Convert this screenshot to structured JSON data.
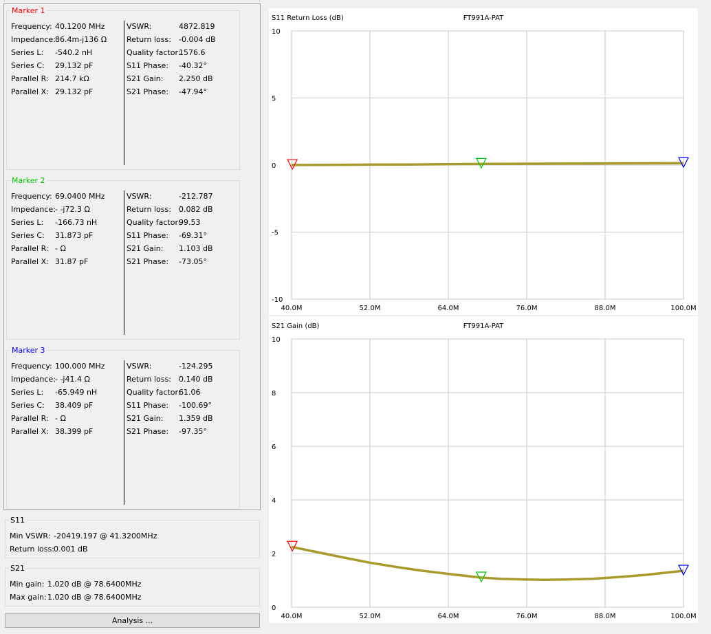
{
  "markers": [
    {
      "title": "Marker 1",
      "title_color": "#ff0000",
      "left_rows": [
        {
          "label": "Frequency:",
          "value": "40.1200 MHz"
        },
        {
          "label": "Impedance:",
          "value": "86.4m-j136 Ω"
        },
        {
          "label": "Series L:",
          "value": "-540.2 nH"
        },
        {
          "label": "Series C:",
          "value": "29.132 pF"
        },
        {
          "label": "Parallel R:",
          "value": "214.7 kΩ"
        },
        {
          "label": "Parallel X:",
          "value": "29.132 pF"
        }
      ],
      "right_rows": [
        {
          "label": "VSWR:",
          "value": "4872.819"
        },
        {
          "label": "Return loss:",
          "value": "-0.004 dB"
        },
        {
          "label": "Quality factor:",
          "value": "1576.6"
        },
        {
          "label": "S11 Phase:",
          "value": "-40.32°"
        },
        {
          "label": "S21 Gain:",
          "value": "2.250 dB"
        },
        {
          "label": "S21 Phase:",
          "value": "-47.94°"
        }
      ]
    },
    {
      "title": "Marker 2",
      "title_color": "#00c800",
      "left_rows": [
        {
          "label": "Frequency:",
          "value": "69.0400 MHz"
        },
        {
          "label": "Impedance:",
          "value": "- -j72.3 Ω"
        },
        {
          "label": "Series L:",
          "value": "-166.73 nH"
        },
        {
          "label": "Series C:",
          "value": "31.873 pF"
        },
        {
          "label": "Parallel R:",
          "value": "- Ω"
        },
        {
          "label": "Parallel X:",
          "value": "31.87 pF"
        }
      ],
      "right_rows": [
        {
          "label": "VSWR:",
          "value": "-212.787"
        },
        {
          "label": "Return loss:",
          "value": "0.082 dB"
        },
        {
          "label": "Quality factor:",
          "value": "99.53"
        },
        {
          "label": "S11 Phase:",
          "value": "-69.31°"
        },
        {
          "label": "S21 Gain:",
          "value": "1.103 dB"
        },
        {
          "label": "S21 Phase:",
          "value": "-73.05°"
        }
      ]
    },
    {
      "title": "Marker 3",
      "title_color": "#0000ff",
      "left_rows": [
        {
          "label": "Frequency:",
          "value": "100.000 MHz"
        },
        {
          "label": "Impedance:",
          "value": "- -j41.4 Ω"
        },
        {
          "label": "Series L:",
          "value": "-65.949 nH"
        },
        {
          "label": "Series C:",
          "value": "38.409 pF"
        },
        {
          "label": "Parallel R:",
          "value": "- Ω"
        },
        {
          "label": "Parallel X:",
          "value": "38.399 pF"
        }
      ],
      "right_rows": [
        {
          "label": "VSWR:",
          "value": "-124.295"
        },
        {
          "label": "Return loss:",
          "value": "0.140 dB"
        },
        {
          "label": "Quality factor:",
          "value": "61.06"
        },
        {
          "label": "S11 Phase:",
          "value": "-100.69°"
        },
        {
          "label": "S21 Gain:",
          "value": "1.359 dB"
        },
        {
          "label": "S21 Phase:",
          "value": "-97.35°"
        }
      ]
    }
  ],
  "s11_summary": {
    "title": "S11",
    "min_vswr_label": "Min VSWR:",
    "min_vswr_value": "-20419.197 @ 41.3200MHz",
    "return_loss_label": "Return loss:",
    "return_loss_value": "0.001 dB"
  },
  "s21_summary": {
    "title": "S21",
    "min_gain_label": "Min gain:",
    "min_gain_value": "1.020 dB @ 78.6400MHz",
    "max_gain_label": "Max gain:",
    "max_gain_value": "1.020 dB @ 78.6400MHz"
  },
  "analysis_button": "Analysis ...",
  "colors": {
    "trace": "#a89a2c",
    "grid": "#c8c8c8",
    "marker1": "#ff0000",
    "marker2": "#00c800",
    "marker3": "#0000ff"
  },
  "chart_data": [
    {
      "type": "line",
      "title": "FT991A-PAT",
      "ylabel": "S11 Return Loss (dB)",
      "xlim": [
        40,
        100
      ],
      "ylim": [
        -10,
        10
      ],
      "x_ticks": [
        40,
        52,
        64,
        76,
        88,
        100
      ],
      "x_tick_labels": [
        "40.0M",
        "52.0M",
        "64.0M",
        "76.0M",
        "88.0M",
        "100.0M"
      ],
      "y_ticks": [
        -10,
        -5,
        0,
        5,
        10
      ],
      "y_tick_labels": [
        "-10",
        "-5",
        "0",
        "5",
        "10"
      ],
      "grid": true,
      "series": [
        {
          "x": [
            40,
            46,
            52,
            58,
            64,
            69.04,
            76,
            82,
            88,
            94,
            100
          ],
          "y": [
            0.0,
            0.01,
            0.03,
            0.04,
            0.06,
            0.08,
            0.1,
            0.11,
            0.12,
            0.13,
            0.14
          ]
        }
      ],
      "markers": [
        {
          "x": 40.12,
          "y": -0.004,
          "color": "#ff0000"
        },
        {
          "x": 69.04,
          "y": 0.082,
          "color": "#00c800"
        },
        {
          "x": 100.0,
          "y": 0.14,
          "color": "#0000ff"
        }
      ]
    },
    {
      "type": "line",
      "title": "FT991A-PAT",
      "ylabel": "S21 Gain (dB)",
      "xlim": [
        40,
        100
      ],
      "ylim": [
        0,
        10
      ],
      "x_ticks": [
        40,
        52,
        64,
        76,
        88,
        100
      ],
      "x_tick_labels": [
        "40.0M",
        "52.0M",
        "64.0M",
        "76.0M",
        "88.0M",
        "100.0M"
      ],
      "y_ticks": [
        0,
        2,
        4,
        6,
        8,
        10
      ],
      "y_tick_labels": [
        "0",
        "2",
        "4",
        "6",
        "8",
        "10"
      ],
      "grid": true,
      "series": [
        {
          "x": [
            40,
            44,
            48,
            52,
            56,
            60,
            64,
            69.04,
            72,
            76,
            78.64,
            82,
            86,
            90,
            94,
            100
          ],
          "y": [
            2.25,
            2.05,
            1.85,
            1.66,
            1.5,
            1.36,
            1.24,
            1.103,
            1.06,
            1.03,
            1.02,
            1.03,
            1.06,
            1.12,
            1.2,
            1.359
          ]
        }
      ],
      "markers": [
        {
          "x": 40.12,
          "y": 2.25,
          "color": "#ff0000"
        },
        {
          "x": 69.04,
          "y": 1.103,
          "color": "#00c800"
        },
        {
          "x": 100.0,
          "y": 1.359,
          "color": "#0000ff"
        }
      ]
    }
  ]
}
